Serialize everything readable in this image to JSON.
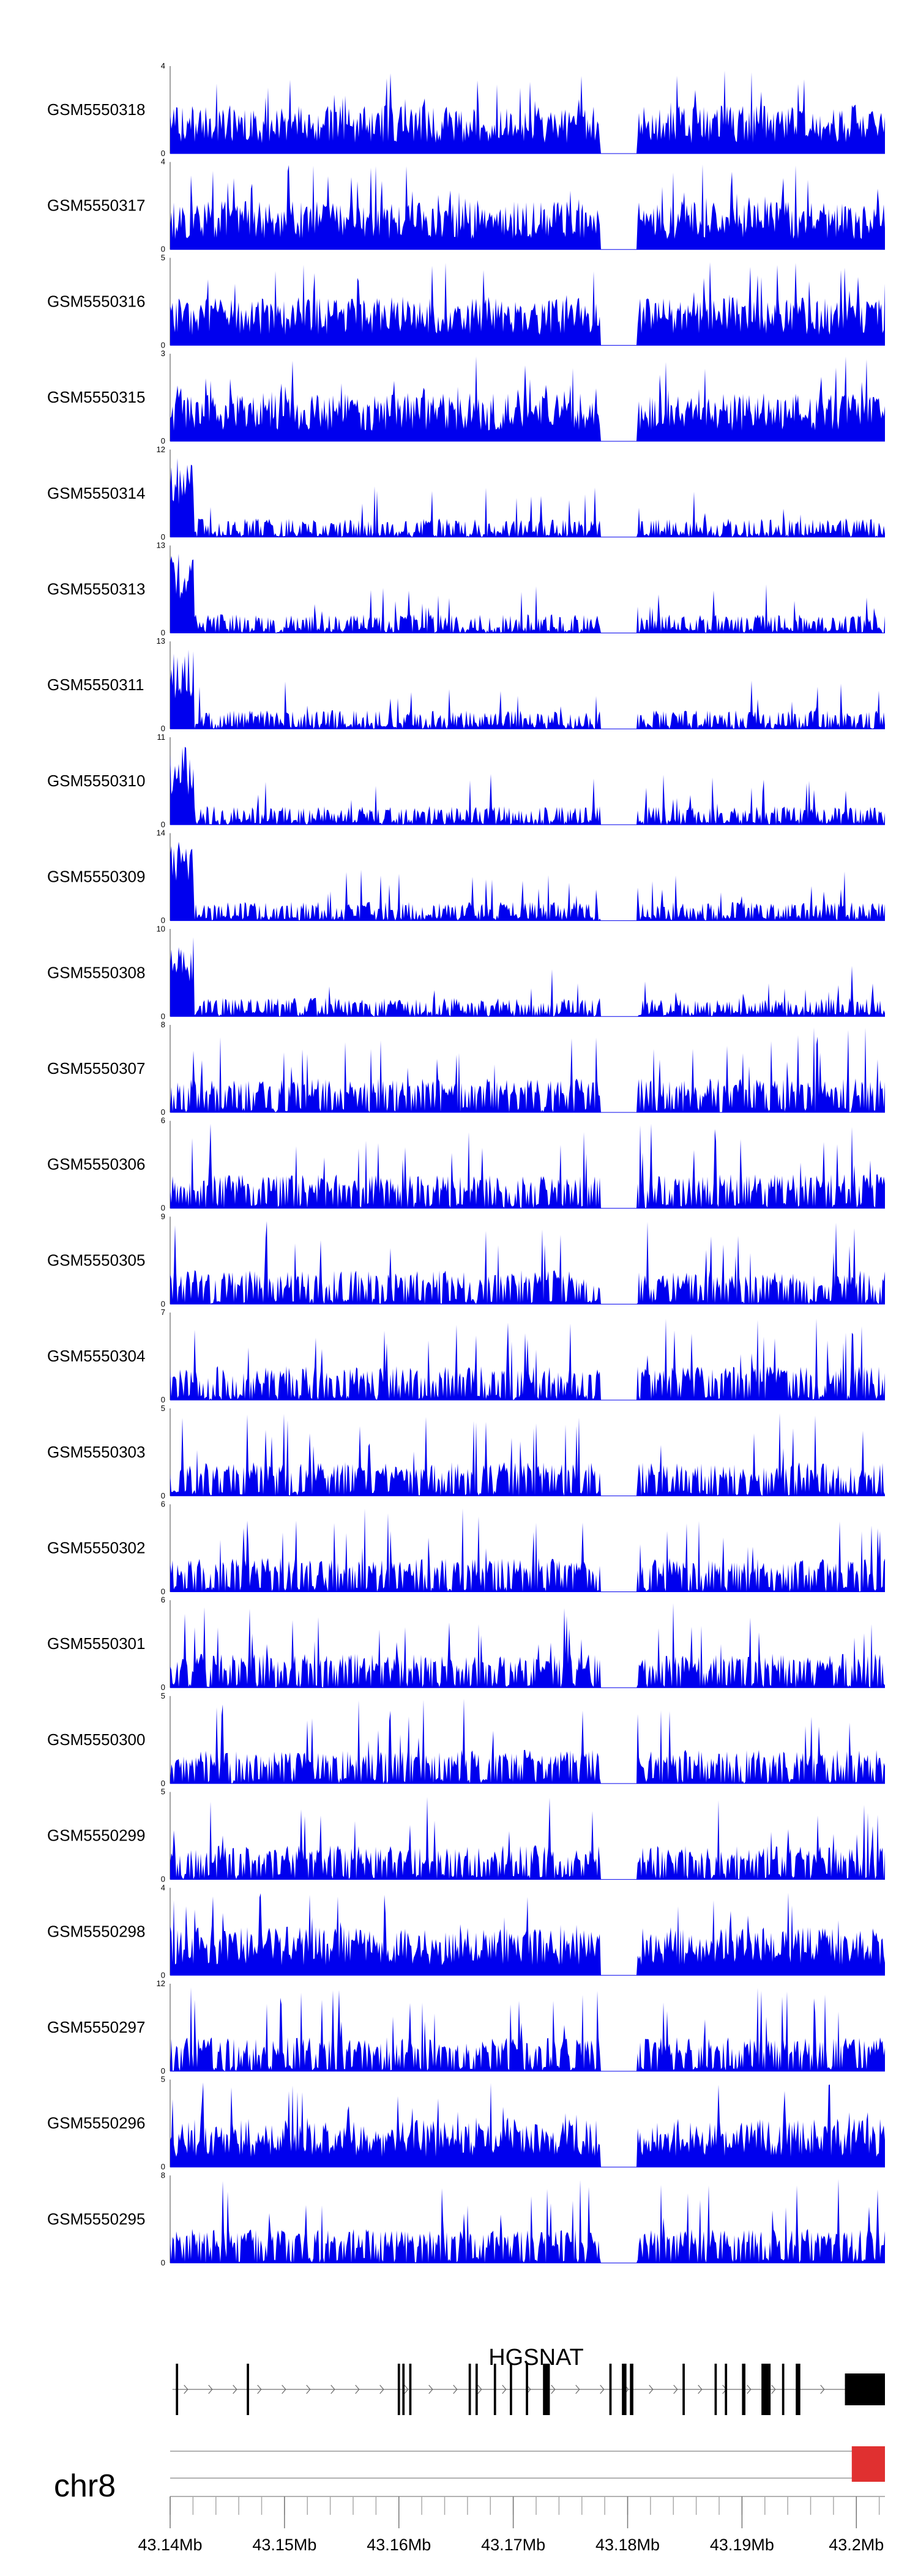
{
  "chart_data": {
    "type": "area",
    "series_color": "#0000ee",
    "tracks": [
      {
        "name": "GSM5550318",
        "ymax": 4
      },
      {
        "name": "GSM5550317",
        "ymax": 4
      },
      {
        "name": "GSM5550316",
        "ymax": 5
      },
      {
        "name": "GSM5550315",
        "ymax": 3
      },
      {
        "name": "GSM5550314",
        "ymax": 12
      },
      {
        "name": "GSM5550313",
        "ymax": 13
      },
      {
        "name": "GSM5550311",
        "ymax": 13
      },
      {
        "name": "GSM5550310",
        "ymax": 11
      },
      {
        "name": "GSM5550309",
        "ymax": 14
      },
      {
        "name": "GSM5550308",
        "ymax": 10
      },
      {
        "name": "GSM5550307",
        "ymax": 8
      },
      {
        "name": "GSM5550306",
        "ymax": 6
      },
      {
        "name": "GSM5550305",
        "ymax": 9
      },
      {
        "name": "GSM5550304",
        "ymax": 7
      },
      {
        "name": "GSM5550303",
        "ymax": 5
      },
      {
        "name": "GSM5550302",
        "ymax": 6
      },
      {
        "name": "GSM5550301",
        "ymax": 6
      },
      {
        "name": "GSM5550300",
        "ymax": 5
      },
      {
        "name": "GSM5550299",
        "ymax": 5
      },
      {
        "name": "GSM5550298",
        "ymax": 4
      },
      {
        "name": "GSM5550297",
        "ymax": 12
      },
      {
        "name": "GSM5550296",
        "ymax": 5
      },
      {
        "name": "GSM5550295",
        "ymax": 8
      }
    ],
    "gene": {
      "name": "HGSNAT",
      "start_mb": 43.1402,
      "end_mb": 43.2025,
      "strand": "+",
      "exons_mb": [
        [
          43.1405,
          43.1407
        ],
        [
          43.1467,
          43.1469
        ],
        [
          43.1599,
          43.1601
        ],
        [
          43.1603,
          43.1605
        ],
        [
          43.1609,
          43.1611
        ],
        [
          43.1661,
          43.1663
        ],
        [
          43.1667,
          43.1669
        ],
        [
          43.1683,
          43.1685
        ],
        [
          43.1697,
          43.1699
        ],
        [
          43.1711,
          43.1713
        ],
        [
          43.1726,
          43.1732
        ],
        [
          43.1784,
          43.1786
        ],
        [
          43.1795,
          43.1799
        ],
        [
          43.1802,
          43.1805
        ],
        [
          43.1848,
          43.185
        ],
        [
          43.1876,
          43.1878
        ],
        [
          43.1885,
          43.1887
        ],
        [
          43.19,
          43.1903
        ],
        [
          43.1917,
          43.1925
        ],
        [
          43.1935,
          43.1937
        ],
        [
          43.1947,
          43.1951
        ],
        [
          43.199,
          43.2025
        ]
      ]
    },
    "chromosome": {
      "name": "chr8",
      "region_mb": [
        43.14,
        43.2025
      ],
      "highlight_mb": [
        43.1996,
        43.2025
      ]
    },
    "x_axis": {
      "range_mb": [
        43.14,
        43.2025
      ],
      "ticks": [
        "43.14Mb",
        "43.15Mb",
        "43.16Mb",
        "43.17Mb",
        "43.18Mb",
        "43.19Mb",
        "43.2Mb"
      ]
    },
    "gap_region_mb": [
      43.1776,
      43.1808
    ]
  }
}
